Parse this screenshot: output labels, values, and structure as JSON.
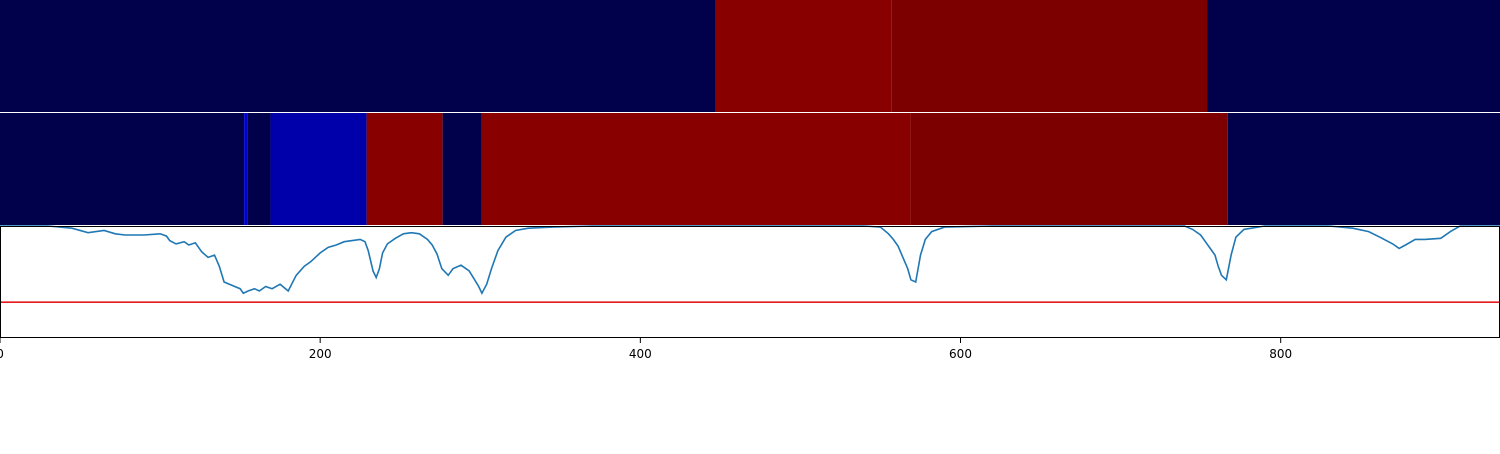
{
  "chart_data": {
    "type": "heatmap",
    "title": "",
    "xlabel": "",
    "ylabel": "",
    "xlim": [
      0,
      937
    ],
    "x_ticks": [
      {
        "value": 0,
        "label": "0"
      },
      {
        "value": 200,
        "label": "200"
      },
      {
        "value": 400,
        "label": "400"
      },
      {
        "value": 600,
        "label": "600"
      },
      {
        "value": 800,
        "label": "800"
      }
    ],
    "colors": {
      "background_dark": "#00004b",
      "blue_segment": "#0000aa",
      "blue_line": "#0000cc",
      "red_segment": "#880000",
      "dark_red_segment": "#7d0000",
      "signal_line": "#1f77b4",
      "threshold_line": "#e41a1c"
    },
    "tracks": [
      {
        "segments": [
          {
            "start": 0,
            "end": 447,
            "color": "#00004b"
          },
          {
            "start": 447,
            "end": 557,
            "color": "#880000"
          },
          {
            "start": 557,
            "end": 754,
            "color": "#7d0000"
          },
          {
            "start": 754,
            "end": 937,
            "color": "#00004b"
          }
        ]
      },
      {
        "segments": [
          {
            "start": 0,
            "end": 152.5,
            "color": "#00004b"
          },
          {
            "start": 152.5,
            "end": 154.5,
            "color": "#0000cc"
          },
          {
            "start": 154.5,
            "end": 169,
            "color": "#00004b"
          },
          {
            "start": 169,
            "end": 229,
            "color": "#0000aa"
          },
          {
            "start": 229,
            "end": 276.5,
            "color": "#880000"
          },
          {
            "start": 276.5,
            "end": 301,
            "color": "#00004b"
          },
          {
            "start": 301,
            "end": 569,
            "color": "#880000"
          },
          {
            "start": 569,
            "end": 767,
            "color": "#7d0000"
          },
          {
            "start": 767,
            "end": 937,
            "color": "#00004b"
          }
        ]
      }
    ],
    "signal": {
      "ylim": [
        0,
        1
      ],
      "threshold": 0.32,
      "points": [
        [
          0,
          1.0
        ],
        [
          30,
          1.0
        ],
        [
          45,
          0.98
        ],
        [
          55,
          0.94
        ],
        [
          65,
          0.96
        ],
        [
          72,
          0.93
        ],
        [
          78,
          0.92
        ],
        [
          90,
          0.92
        ],
        [
          100,
          0.93
        ],
        [
          104,
          0.91
        ],
        [
          106,
          0.87
        ],
        [
          110,
          0.84
        ],
        [
          115,
          0.86
        ],
        [
          118,
          0.83
        ],
        [
          122,
          0.85
        ],
        [
          126,
          0.77
        ],
        [
          130,
          0.72
        ],
        [
          134,
          0.74
        ],
        [
          137,
          0.64
        ],
        [
          140,
          0.5
        ],
        [
          145,
          0.47
        ],
        [
          150,
          0.44
        ],
        [
          152,
          0.4
        ],
        [
          155,
          0.42
        ],
        [
          159,
          0.44
        ],
        [
          162,
          0.42
        ],
        [
          166,
          0.46
        ],
        [
          170,
          0.44
        ],
        [
          175,
          0.48
        ],
        [
          180,
          0.42
        ],
        [
          185,
          0.56
        ],
        [
          190,
          0.64
        ],
        [
          194,
          0.68
        ],
        [
          200,
          0.76
        ],
        [
          205,
          0.81
        ],
        [
          210,
          0.83
        ],
        [
          215,
          0.86
        ],
        [
          220,
          0.87
        ],
        [
          225,
          0.88
        ],
        [
          228,
          0.86
        ],
        [
          230,
          0.78
        ],
        [
          233,
          0.6
        ],
        [
          235,
          0.54
        ],
        [
          237,
          0.62
        ],
        [
          239,
          0.76
        ],
        [
          242,
          0.84
        ],
        [
          247,
          0.89
        ],
        [
          252,
          0.93
        ],
        [
          257,
          0.94
        ],
        [
          262,
          0.93
        ],
        [
          267,
          0.88
        ],
        [
          270,
          0.83
        ],
        [
          273,
          0.75
        ],
        [
          276,
          0.62
        ],
        [
          280,
          0.56
        ],
        [
          283,
          0.62
        ],
        [
          288,
          0.65
        ],
        [
          293,
          0.6
        ],
        [
          296,
          0.53
        ],
        [
          299,
          0.46
        ],
        [
          301,
          0.4
        ],
        [
          304,
          0.48
        ],
        [
          307,
          0.62
        ],
        [
          311,
          0.78
        ],
        [
          316,
          0.9
        ],
        [
          322,
          0.96
        ],
        [
          330,
          0.98
        ],
        [
          345,
          0.99
        ],
        [
          370,
          1.0
        ],
        [
          400,
          1.0
        ],
        [
          430,
          1.0
        ],
        [
          460,
          1.0
        ],
        [
          500,
          1.0
        ],
        [
          540,
          1.0
        ],
        [
          550,
          0.99
        ],
        [
          555,
          0.93
        ],
        [
          558,
          0.88
        ],
        [
          561,
          0.82
        ],
        [
          564,
          0.72
        ],
        [
          567,
          0.62
        ],
        [
          569,
          0.52
        ],
        [
          572,
          0.5
        ],
        [
          575,
          0.74
        ],
        [
          578,
          0.88
        ],
        [
          582,
          0.95
        ],
        [
          590,
          0.99
        ],
        [
          620,
          1.0
        ],
        [
          680,
          1.0
        ],
        [
          740,
          1.0
        ],
        [
          745,
          0.97
        ],
        [
          750,
          0.92
        ],
        [
          753,
          0.86
        ],
        [
          756,
          0.8
        ],
        [
          759,
          0.74
        ],
        [
          761,
          0.64
        ],
        [
          763,
          0.56
        ],
        [
          766,
          0.52
        ],
        [
          769,
          0.74
        ],
        [
          772,
          0.9
        ],
        [
          777,
          0.97
        ],
        [
          790,
          1.0
        ],
        [
          830,
          1.0
        ],
        [
          845,
          0.98
        ],
        [
          855,
          0.95
        ],
        [
          862,
          0.9
        ],
        [
          866,
          0.87
        ],
        [
          870,
          0.84
        ],
        [
          874,
          0.8
        ],
        [
          878,
          0.83
        ],
        [
          884,
          0.88
        ],
        [
          890,
          0.88
        ],
        [
          900,
          0.89
        ],
        [
          906,
          0.95
        ],
        [
          912,
          1.0
        ],
        [
          937,
          1.0
        ]
      ]
    }
  }
}
